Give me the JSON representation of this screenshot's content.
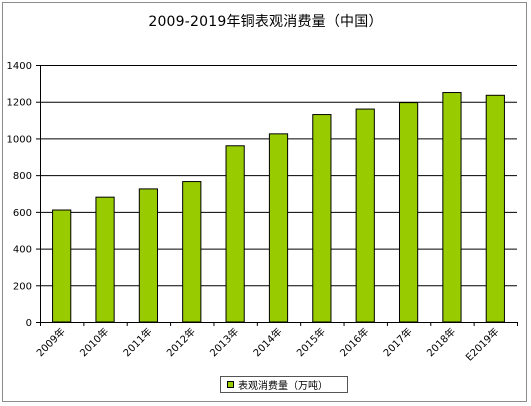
{
  "chart_data": {
    "type": "bar",
    "title": "2009-2019年铜表观消费量（中国）",
    "categories": [
      "2009年",
      "2010年",
      "2011年",
      "2012年",
      "2013年",
      "2014年",
      "2015年",
      "2016年",
      "2017年",
      "2018年",
      "E2019年"
    ],
    "series": [
      {
        "name": "表观消费量（万吨）",
        "values": [
          610,
          680,
          725,
          765,
          960,
          1025,
          1130,
          1160,
          1195,
          1250,
          1235
        ]
      }
    ],
    "ylim": [
      0,
      1400
    ],
    "yticks": [
      0,
      200,
      400,
      600,
      800,
      1000,
      1200,
      1400
    ],
    "grid": true,
    "legend": "bottom",
    "colors": {
      "bar_fill": "#99cc00",
      "bar_stroke": "#000000",
      "grid": "#000000"
    }
  }
}
